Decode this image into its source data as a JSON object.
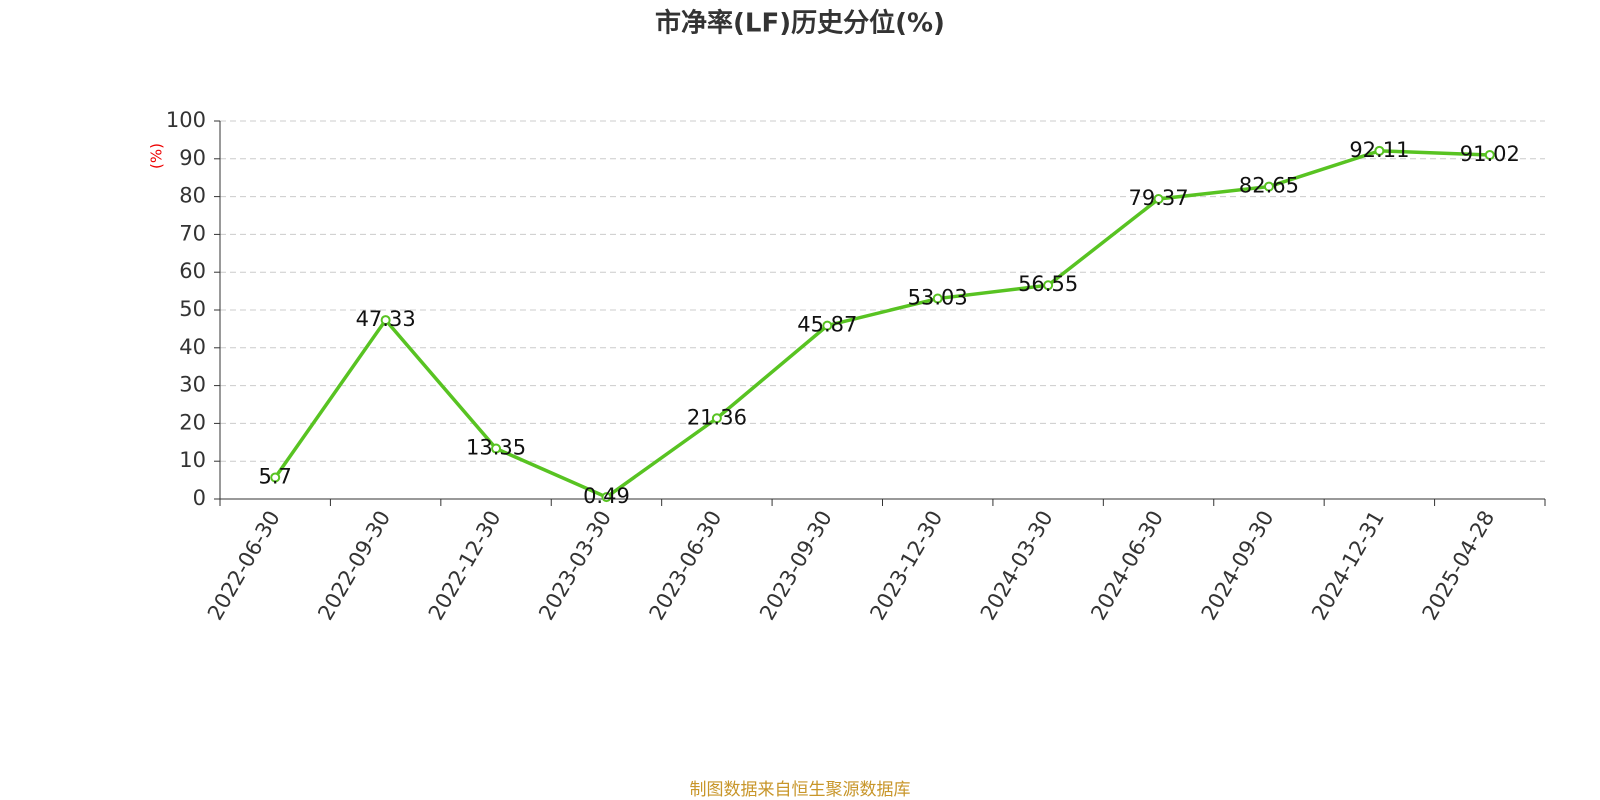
{
  "chart_data": {
    "type": "line",
    "title": "市净率(LF)历史分位(%)",
    "y_label": "(%)",
    "source": "制图数据来自恒生聚源数据库",
    "categories": [
      "2022-06-30",
      "2022-09-30",
      "2022-12-30",
      "2023-03-30",
      "2023-06-30",
      "2023-09-30",
      "2023-12-30",
      "2024-03-30",
      "2024-06-30",
      "2024-09-30",
      "2024-12-31",
      "2025-04-28"
    ],
    "values": [
      5.7,
      47.33,
      13.35,
      0.49,
      21.36,
      45.87,
      53.03,
      56.55,
      79.37,
      82.65,
      92.11,
      91.02
    ],
    "color": "#58c322",
    "ylim": [
      0,
      100
    ],
    "yticks": [
      0,
      10,
      20,
      30,
      40,
      50,
      60,
      70,
      80,
      90,
      100
    ],
    "grid": true
  }
}
